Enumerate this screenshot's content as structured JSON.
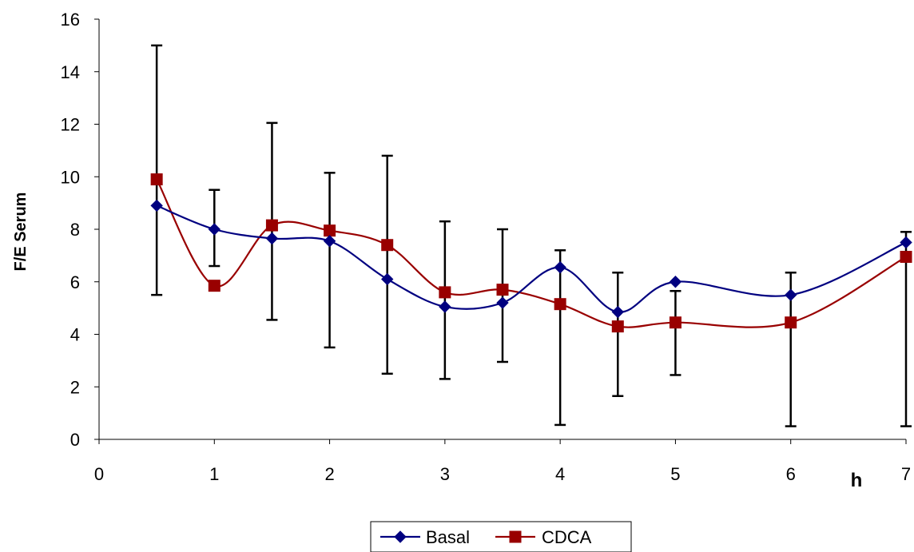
{
  "chart_data": {
    "type": "line",
    "title": "",
    "xlabel": "h",
    "ylabel": "F/E Serum",
    "xlim": [
      0,
      7
    ],
    "ylim": [
      0,
      16
    ],
    "xticks": [
      "0",
      "1",
      "2",
      "3",
      "4",
      "5",
      "6",
      "7"
    ],
    "yticks": [
      "0",
      "2",
      "4",
      "6",
      "8",
      "10",
      "12",
      "14",
      "16"
    ],
    "grid": false,
    "legend_position": "bottom",
    "smoothed": true,
    "series": [
      {
        "name": "Basal",
        "color": "#000080",
        "marker": "diamond",
        "points": [
          {
            "x": 0.5,
            "y": 8.9,
            "err_low": 5.5,
            "err_high": 15.0
          },
          {
            "x": 1.0,
            "y": 8.0,
            "err_low": 6.6,
            "err_high": 9.5
          },
          {
            "x": 1.5,
            "y": 7.65,
            "err_low": 4.55,
            "err_high": 12.05
          },
          {
            "x": 2.0,
            "y": 7.55,
            "err_low": 3.5,
            "err_high": 10.15
          },
          {
            "x": 2.5,
            "y": 6.1,
            "err_low": 2.5,
            "err_high": 10.8
          },
          {
            "x": 3.0,
            "y": 5.05,
            "err_low": 2.3,
            "err_high": 8.3
          },
          {
            "x": 3.5,
            "y": 5.2,
            "err_low": 2.95,
            "err_high": 8.0
          },
          {
            "x": 4.0,
            "y": 6.55,
            "err_low": 0.55,
            "err_high": 7.2
          },
          {
            "x": 4.5,
            "y": 4.85,
            "err_low": 1.65,
            "err_high": 6.35
          },
          {
            "x": 5.0,
            "y": 6.0,
            "err_low": 2.45,
            "err_high": 5.65
          },
          {
            "x": 6.0,
            "y": 5.5,
            "err_low": 0.5,
            "err_high": 6.35
          },
          {
            "x": 7.0,
            "y": 7.5,
            "err_low": 0.5,
            "err_high": 7.9
          }
        ]
      },
      {
        "name": "CDCA",
        "color": "#990000",
        "marker": "square",
        "points": [
          {
            "x": 0.5,
            "y": 9.9
          },
          {
            "x": 1.0,
            "y": 5.85
          },
          {
            "x": 1.5,
            "y": 8.15
          },
          {
            "x": 2.0,
            "y": 7.95
          },
          {
            "x": 2.5,
            "y": 7.4
          },
          {
            "x": 3.0,
            "y": 5.6
          },
          {
            "x": 3.5,
            "y": 5.7
          },
          {
            "x": 4.0,
            "y": 5.15
          },
          {
            "x": 4.5,
            "y": 4.3
          },
          {
            "x": 5.0,
            "y": 4.45
          },
          {
            "x": 6.0,
            "y": 4.45
          },
          {
            "x": 7.0,
            "y": 6.95
          }
        ]
      }
    ]
  }
}
